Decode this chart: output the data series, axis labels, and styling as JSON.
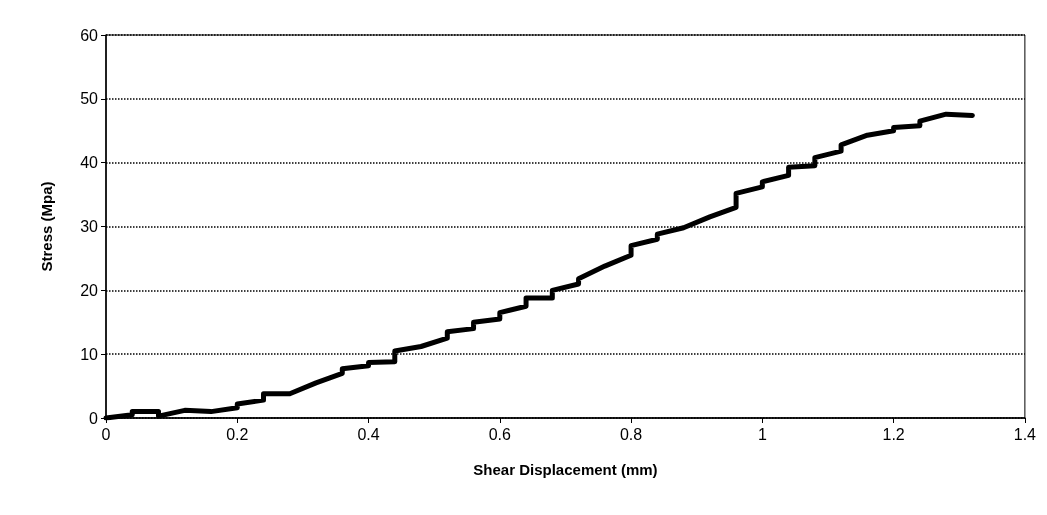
{
  "chart_data": {
    "type": "line",
    "xlabel": "Shear Displacement (mm)",
    "ylabel": "Stress (Mpa)",
    "xlim": [
      0,
      1.4
    ],
    "xticks": [
      0,
      0.2,
      0.4,
      0.6,
      0.8,
      1,
      1.2,
      1.4
    ],
    "ylim": [
      0,
      60
    ],
    "yticks": [
      0,
      10,
      20,
      30,
      40,
      50,
      60
    ],
    "grid": "y",
    "marker": "none",
    "line_style": "solid",
    "series": [
      {
        "color": "#000000",
        "x": [
          0,
          0.04,
          0.04,
          0.08,
          0.08,
          0.12,
          0.16,
          0.2,
          0.2,
          0.24,
          0.24,
          0.28,
          0.32,
          0.36,
          0.36,
          0.4,
          0.4,
          0.44,
          0.44,
          0.48,
          0.52,
          0.52,
          0.56,
          0.56,
          0.6,
          0.6,
          0.64,
          0.64,
          0.68,
          0.68,
          0.72,
          0.72,
          0.76,
          0.8,
          0.8,
          0.84,
          0.84,
          0.88,
          0.92,
          0.96,
          0.96,
          1,
          1,
          1.04,
          1.04,
          1.08,
          1.08,
          1.12,
          1.12,
          1.16,
          1.2,
          1.2,
          1.24,
          1.24,
          1.28,
          1.32
        ],
        "values": [
          0,
          0.5,
          1,
          1,
          0.3,
          1.2,
          1,
          1.6,
          2.2,
          2.8,
          3.8,
          3.8,
          5.5,
          7,
          7.7,
          8.2,
          8.7,
          8.8,
          10.5,
          11.2,
          12.5,
          13.5,
          14,
          15,
          15.5,
          16.5,
          17.5,
          18.8,
          18.8,
          20,
          21,
          21.8,
          23.8,
          25.5,
          27,
          28,
          28.8,
          29.8,
          31.5,
          33,
          35.2,
          36.2,
          37,
          38,
          39.3,
          39.5,
          40.8,
          41.8,
          42.8,
          44.3,
          45,
          45.5,
          45.8,
          46.5,
          47.6,
          47.4
        ]
      }
    ]
  }
}
